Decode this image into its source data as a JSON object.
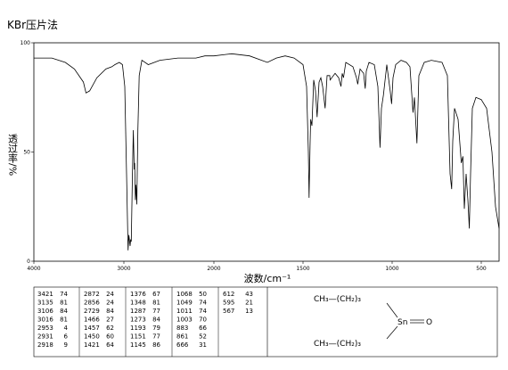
{
  "chart_data": {
    "type": "line",
    "title": "KBr压片法",
    "xlabel": "波数/cm⁻¹",
    "ylabel": "透过率/%",
    "xlim": [
      4000,
      400
    ],
    "xticks": [
      4000,
      3000,
      2000,
      1500,
      1000,
      500
    ],
    "x_scale_break": 2000,
    "ylim": [
      0,
      100
    ],
    "yticks": [
      0,
      50,
      100
    ],
    "series": [
      {
        "color": "#000000",
        "x": [
          4000,
          3800,
          3650,
          3550,
          3450,
          3421,
          3380,
          3300,
          3200,
          3135,
          3100,
          3050,
          3016,
          2990,
          2970,
          2953,
          2945,
          2931,
          2925,
          2918,
          2905,
          2895,
          2885,
          2880,
          2872,
          2865,
          2856,
          2845,
          2830,
          2800,
          2729,
          2600,
          2400,
          2200,
          2100,
          2000,
          1900,
          1800,
          1700,
          1650,
          1600,
          1550,
          1500,
          1480,
          1470,
          1466,
          1460,
          1457,
          1450,
          1440,
          1430,
          1421,
          1410,
          1400,
          1390,
          1376,
          1365,
          1350,
          1348,
          1320,
          1300,
          1287,
          1280,
          1273,
          1260,
          1220,
          1200,
          1193,
          1180,
          1160,
          1151,
          1145,
          1130,
          1100,
          1080,
          1068,
          1060,
          1049,
          1030,
          1011,
          1003,
          995,
          980,
          950,
          920,
          900,
          883,
          875,
          861,
          850,
          820,
          780,
          720,
          690,
          675,
          666,
          660,
          650,
          630,
          612,
          603,
          595,
          585,
          575,
          567,
          560,
          550,
          530,
          500,
          470,
          440,
          420,
          400
        ],
        "values": [
          93,
          93,
          91,
          88,
          82,
          77,
          78,
          84,
          88,
          89,
          90,
          91,
          90,
          80,
          40,
          5,
          12,
          7,
          10,
          9,
          40,
          60,
          42,
          45,
          28,
          35,
          26,
          60,
          85,
          92,
          90,
          92,
          93,
          93,
          94,
          94,
          95,
          94,
          91,
          93,
          94,
          93,
          90,
          80,
          50,
          29,
          55,
          65,
          62,
          83,
          78,
          66,
          82,
          84,
          80,
          70,
          85,
          85,
          83,
          86,
          84,
          80,
          86,
          84,
          91,
          89,
          84,
          81,
          88,
          86,
          79,
          87,
          91,
          90,
          80,
          52,
          70,
          76,
          90,
          78,
          72,
          84,
          90,
          92,
          91,
          89,
          68,
          75,
          54,
          85,
          91,
          92,
          91,
          85,
          40,
          33,
          55,
          70,
          65,
          45,
          48,
          24,
          40,
          28,
          15,
          40,
          70,
          75,
          74,
          70,
          50,
          25,
          15
        ]
      }
    ],
    "peak_table": {
      "wavenumbers": [
        3421,
        3135,
        3106,
        3016,
        2953,
        2931,
        2918,
        2872,
        2856,
        2729,
        1466,
        1457,
        1450,
        1421,
        1376,
        1348,
        1287,
        1273,
        1193,
        1151,
        1145,
        1068,
        1049,
        1011,
        1003,
        883,
        861,
        666,
        612,
        595,
        567
      ],
      "transmittance": [
        74,
        81,
        84,
        81,
        4,
        6,
        9,
        24,
        24,
        84,
        27,
        62,
        60,
        64,
        67,
        81,
        77,
        84,
        79,
        77,
        86,
        50,
        74,
        74,
        70,
        66,
        52,
        31,
        43,
        21,
        13
      ]
    },
    "structure": {
      "top": "CH₃—(CH₂)₃",
      "bottom": "CH₃—(CH₂)₃",
      "metal": "Sn",
      "oxygen": "O"
    }
  }
}
